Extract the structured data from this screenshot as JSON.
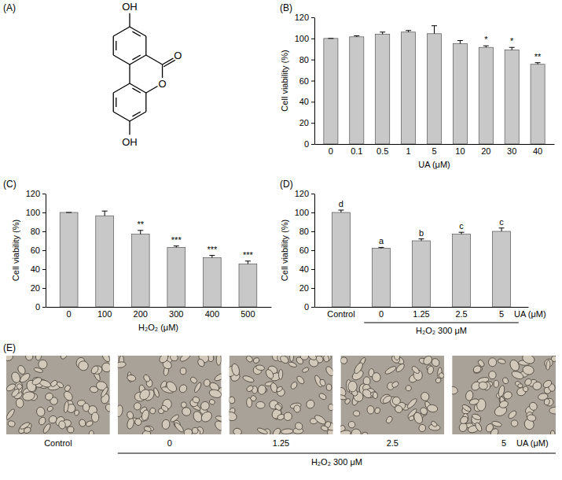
{
  "chart_data": [
    {
      "type": "bar",
      "panel_label": "(B)",
      "x_label": "UA (μM)",
      "y_label": "Cell viability (%)",
      "categories": [
        "0",
        "0.1",
        "0.5",
        "1",
        "5",
        "10",
        "20",
        "30",
        "40"
      ],
      "values": [
        100,
        101.5,
        104,
        106,
        104.5,
        95,
        91.5,
        89,
        75.5
      ],
      "errors": [
        0,
        1,
        2,
        1.5,
        7.5,
        3,
        1.5,
        2.5,
        1.5
      ],
      "annotations": [
        null,
        null,
        null,
        null,
        null,
        null,
        "*",
        "*",
        "**"
      ],
      "ylim": [
        0,
        120
      ],
      "yticks": [
        0,
        20,
        40,
        60,
        80,
        100,
        120
      ],
      "color": "#c8c8c8",
      "grid": false
    },
    {
      "type": "bar",
      "panel_label": "(C)",
      "x_label": "H₂O₂ (μM)",
      "y_label": "Cell viability (%)",
      "categories": [
        "0",
        "100",
        "200",
        "300",
        "400",
        "500"
      ],
      "values": [
        100,
        96.5,
        77,
        63,
        52,
        45.5
      ],
      "errors": [
        0,
        5,
        4,
        1.5,
        2.5,
        3
      ],
      "annotations": [
        null,
        null,
        "**",
        "***",
        "***",
        "***"
      ],
      "ylim": [
        0,
        120
      ],
      "yticks": [
        0,
        20,
        40,
        60,
        80,
        100,
        120
      ],
      "color": "#c8c8c8",
      "grid": false
    },
    {
      "type": "bar",
      "panel_label": "(D)",
      "x_label": "UA (μM)",
      "y_label": "Cell viability (%)",
      "categories": [
        "Control",
        "0",
        "1.25",
        "2.5",
        "5"
      ],
      "values": [
        100,
        62,
        70,
        77,
        80
      ],
      "errors": [
        2.5,
        1,
        2,
        2,
        3.5
      ],
      "annotations": [
        "d",
        "a",
        "b",
        "c",
        "c"
      ],
      "group": {
        "label": "H₂O₂ 300 μM",
        "categories": [
          "0",
          "1.25",
          "2.5",
          "5"
        ]
      },
      "ylim": [
        0,
        120
      ],
      "yticks": [
        0,
        20,
        40,
        60,
        80,
        100,
        120
      ],
      "color": "#c8c8c8",
      "grid": false
    }
  ],
  "structure": {
    "panel_label": "(A)",
    "labels": [
      "OH",
      "O",
      "O",
      "OH"
    ]
  },
  "micrographs": {
    "panel_label": "(E)",
    "captions": [
      "Control",
      "0",
      "1.25",
      "2.5",
      "5"
    ],
    "x_label": "UA (μM)",
    "group": {
      "label": "H₂O₂ 300 μM",
      "captions": [
        "0",
        "1.25",
        "2.5",
        "5"
      ]
    }
  }
}
